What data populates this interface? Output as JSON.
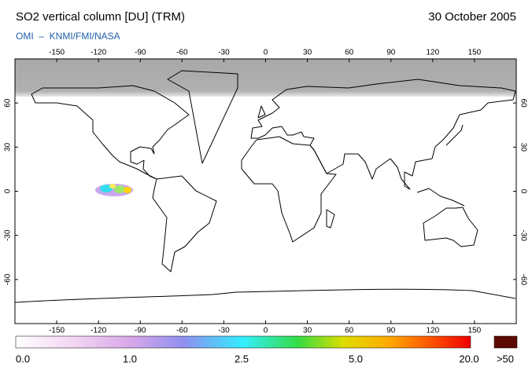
{
  "header": {
    "title": "SO2 vertical column [DU] (TRM)",
    "date": "30 October 2005",
    "credit": "OMI  –  KNMI/FMI/NASA"
  },
  "map": {
    "lon_ticks": [
      -150,
      -120,
      -90,
      -60,
      -30,
      0,
      30,
      60,
      90,
      120,
      150
    ],
    "lat_ticks": [
      60,
      30,
      0,
      -30,
      -60
    ]
  },
  "colorbar": {
    "labels": [
      "0.0",
      "1.0",
      "2.5",
      "5.0",
      "20.0"
    ],
    "overflow_label": ">50"
  }
}
